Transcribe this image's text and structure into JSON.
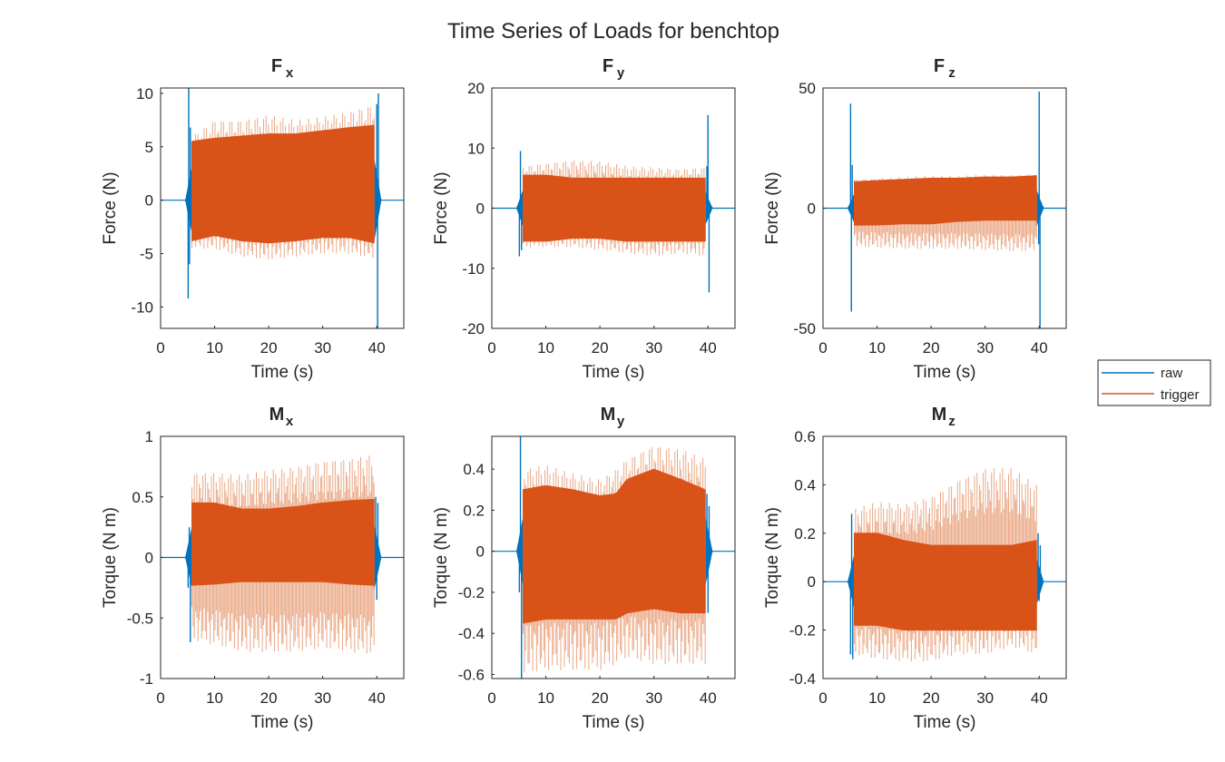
{
  "figure_title": "Time Series of Loads for benchtop",
  "legend": {
    "entries": [
      "raw",
      "trigger"
    ]
  },
  "colors": {
    "raw": "#0072BD",
    "trigger": "#D95319",
    "trigger_light": "#EAA886",
    "axis": "#262626"
  },
  "chart_data": [
    {
      "type": "line",
      "title": "Fx",
      "title_main": "F",
      "title_sub": "x",
      "xlabel": "Time (s)",
      "ylabel": "Force (N)",
      "xlim": [
        0,
        45
      ],
      "ylim": [
        -12,
        10.5
      ],
      "xticks": [
        0,
        10,
        20,
        30,
        40
      ],
      "yticks": [
        -10,
        -5,
        0,
        5,
        10
      ],
      "series": [
        {
          "name": "raw",
          "x": [
            0,
            4.9,
            5.1,
            5.2,
            5.35,
            5.5,
            40.0,
            40.15,
            40.3,
            41.5,
            45
          ],
          "y": [
            0,
            0,
            -9.2,
            10.5,
            -6.0,
            6.8,
            9.0,
            -12.0,
            10.0,
            0,
            0
          ]
        },
        {
          "name": "trigger",
          "x": [
            5.8,
            10,
            15,
            20,
            25,
            30,
            35,
            39.5
          ],
          "upper": [
            6.0,
            7.5,
            7.5,
            8.0,
            7.5,
            7.8,
            8.3,
            9.0
          ],
          "lower": [
            -4.5,
            -4.6,
            -5.3,
            -5.6,
            -5.3,
            -5.0,
            -5.0,
            -5.5
          ],
          "core_upper": [
            5.5,
            5.8,
            6.0,
            6.2,
            6.2,
            6.5,
            6.8,
            7.0
          ],
          "core_lower": [
            -3.8,
            -3.3,
            -3.8,
            -4.0,
            -3.8,
            -3.5,
            -3.5,
            -4.0
          ]
        }
      ]
    },
    {
      "type": "line",
      "title": "Fy",
      "title_main": "F",
      "title_sub": "y",
      "xlabel": "Time (s)",
      "ylabel": "Force (N)",
      "xlim": [
        0,
        45
      ],
      "ylim": [
        -20,
        20
      ],
      "xticks": [
        0,
        10,
        20,
        30,
        40
      ],
      "yticks": [
        -20,
        -10,
        0,
        10,
        20
      ],
      "series": [
        {
          "name": "raw",
          "x": [
            0,
            4.9,
            5.1,
            5.3,
            5.5,
            39.8,
            40.0,
            40.2,
            41.5,
            45
          ],
          "y": [
            0,
            0,
            -8.0,
            9.5,
            -7.0,
            7.0,
            15.5,
            -14.0,
            0,
            0
          ]
        },
        {
          "name": "trigger",
          "x": [
            5.8,
            10,
            15,
            20,
            25,
            30,
            35,
            39.5
          ],
          "upper": [
            7.0,
            7.5,
            8.0,
            7.8,
            7.0,
            6.8,
            6.5,
            6.8
          ],
          "lower": [
            -6.5,
            -6.5,
            -6.5,
            -7.0,
            -7.5,
            -8.0,
            -7.5,
            -8.0
          ],
          "core_upper": [
            5.5,
            5.5,
            5.0,
            5.0,
            5.0,
            5.0,
            5.0,
            5.0
          ],
          "core_lower": [
            -5.5,
            -5.5,
            -5.0,
            -5.0,
            -5.5,
            -5.5,
            -5.5,
            -5.5
          ]
        }
      ]
    },
    {
      "type": "line",
      "title": "Fz",
      "title_main": "F",
      "title_sub": "z",
      "xlabel": "Time (s)",
      "ylabel": "Force (N)",
      "xlim": [
        0,
        45
      ],
      "ylim": [
        -50,
        50
      ],
      "xticks": [
        0,
        10,
        20,
        30,
        40
      ],
      "yticks": [
        -50,
        0,
        50
      ],
      "series": [
        {
          "name": "raw",
          "x": [
            0,
            4.9,
            5.1,
            5.25,
            5.4,
            39.9,
            40.0,
            40.15,
            41.5,
            45
          ],
          "y": [
            0,
            0,
            43.5,
            -43.0,
            18.0,
            -15.0,
            48.5,
            -50.0,
            0,
            0
          ]
        },
        {
          "name": "trigger",
          "x": [
            5.8,
            10,
            15,
            20,
            25,
            30,
            35,
            39.5
          ],
          "upper": [
            12.0,
            12.5,
            13.0,
            13.5,
            13.5,
            14.0,
            14.0,
            14.5
          ],
          "lower": [
            -16.0,
            -16.5,
            -17.0,
            -17.0,
            -17.0,
            -17.5,
            -18.0,
            -18.0
          ],
          "core_upper": [
            11.0,
            11.5,
            12.0,
            12.5,
            12.5,
            13.0,
            13.0,
            13.5
          ],
          "core_lower": [
            -7.0,
            -7.0,
            -6.5,
            -6.5,
            -5.5,
            -5.0,
            -5.0,
            -5.0
          ]
        }
      ]
    },
    {
      "type": "line",
      "title": "Mx",
      "title_main": "M",
      "title_sub": "x",
      "xlabel": "Time (s)",
      "ylabel": "Torque (N m)",
      "xlim": [
        0,
        45
      ],
      "ylim": [
        -1,
        1
      ],
      "xticks": [
        0,
        10,
        20,
        30,
        40
      ],
      "yticks": [
        -1,
        -0.5,
        0,
        0.5,
        1
      ],
      "series": [
        {
          "name": "raw",
          "x": [
            0,
            4.9,
            5.1,
            5.3,
            5.5,
            39.8,
            40.0,
            40.2,
            41.5,
            45
          ],
          "y": [
            0,
            0,
            -0.25,
            0.25,
            -0.7,
            0.5,
            -0.35,
            0.45,
            0,
            0
          ]
        },
        {
          "name": "trigger",
          "x": [
            5.8,
            10,
            15,
            20,
            25,
            30,
            35,
            39.5
          ],
          "upper": [
            0.7,
            0.7,
            0.68,
            0.72,
            0.75,
            0.8,
            0.82,
            0.85
          ],
          "lower": [
            -0.68,
            -0.72,
            -0.78,
            -0.78,
            -0.78,
            -0.75,
            -0.78,
            -0.8
          ],
          "core_upper": [
            0.45,
            0.45,
            0.4,
            0.4,
            0.42,
            0.45,
            0.47,
            0.48
          ],
          "core_lower": [
            -0.23,
            -0.22,
            -0.2,
            -0.2,
            -0.2,
            -0.2,
            -0.22,
            -0.23
          ]
        }
      ]
    },
    {
      "type": "line",
      "title": "My",
      "title_main": "M",
      "title_sub": "y",
      "xlabel": "Time (s)",
      "ylabel": "Torque (N m)",
      "xlim": [
        0,
        45
      ],
      "ylim": [
        -0.62,
        0.56
      ],
      "xticks": [
        0,
        10,
        20,
        30,
        40
      ],
      "yticks": [
        -0.6,
        -0.4,
        -0.2,
        0,
        0.2,
        0.4
      ],
      "series": [
        {
          "name": "raw",
          "x": [
            0,
            4.9,
            5.1,
            5.3,
            5.5,
            39.8,
            40.0,
            40.2,
            41.5,
            45
          ],
          "y": [
            0,
            0,
            -0.2,
            0.56,
            -0.62,
            0.28,
            -0.3,
            0.22,
            0,
            0
          ]
        },
        {
          "name": "trigger",
          "x": [
            5.8,
            10,
            15,
            20,
            23,
            25,
            30,
            35,
            39.5
          ],
          "upper": [
            0.4,
            0.42,
            0.38,
            0.35,
            0.4,
            0.45,
            0.52,
            0.5,
            0.45
          ],
          "lower": [
            -0.6,
            -0.58,
            -0.58,
            -0.58,
            -0.55,
            -0.52,
            -0.55,
            -0.55,
            -0.55
          ],
          "core_upper": [
            0.3,
            0.32,
            0.3,
            0.27,
            0.28,
            0.35,
            0.4,
            0.35,
            0.3
          ],
          "core_lower": [
            -0.35,
            -0.33,
            -0.33,
            -0.33,
            -0.33,
            -0.3,
            -0.28,
            -0.3,
            -0.3
          ]
        }
      ]
    },
    {
      "type": "line",
      "title": "Mz",
      "title_main": "M",
      "title_sub": "z",
      "xlabel": "Time (s)",
      "ylabel": "Torque (N m)",
      "xlim": [
        0,
        45
      ],
      "ylim": [
        -0.4,
        0.6
      ],
      "xticks": [
        0,
        10,
        20,
        30,
        40
      ],
      "yticks": [
        -0.4,
        -0.2,
        0,
        0.2,
        0.4,
        0.6
      ],
      "series": [
        {
          "name": "raw",
          "x": [
            0,
            4.9,
            5.1,
            5.3,
            5.5,
            39.8,
            40.0,
            40.2,
            41.5,
            45
          ],
          "y": [
            0,
            0,
            -0.3,
            0.28,
            -0.32,
            0.2,
            -0.08,
            0.15,
            0,
            0
          ]
        },
        {
          "name": "trigger",
          "x": [
            5.8,
            10,
            15,
            20,
            25,
            30,
            35,
            39.5
          ],
          "upper": [
            0.3,
            0.33,
            0.32,
            0.35,
            0.42,
            0.47,
            0.47,
            0.4
          ],
          "lower": [
            -0.3,
            -0.32,
            -0.33,
            -0.33,
            -0.3,
            -0.3,
            -0.27,
            -0.3
          ],
          "core_upper": [
            0.2,
            0.2,
            0.17,
            0.15,
            0.15,
            0.15,
            0.15,
            0.17
          ],
          "core_lower": [
            -0.18,
            -0.18,
            -0.2,
            -0.2,
            -0.2,
            -0.2,
            -0.2,
            -0.2
          ]
        }
      ]
    }
  ]
}
